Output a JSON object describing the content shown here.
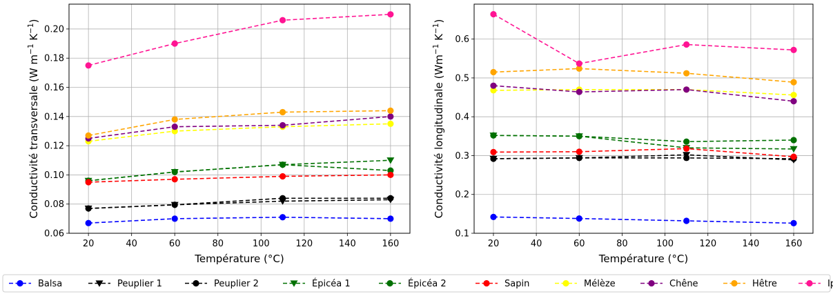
{
  "chart_data": [
    {
      "type": "line",
      "x": [
        20,
        60,
        110,
        160
      ],
      "xlabel": "Température (°C)",
      "ylabel": "Conductivité transversale (W m⁻¹ K⁻¹)",
      "xlim": [
        11,
        169
      ],
      "ylim": [
        0.06,
        0.217
      ],
      "xticks": [
        "20",
        "40",
        "60",
        "80",
        "100",
        "120",
        "140",
        "160"
      ],
      "yticks": [
        "0.06",
        "0.08",
        "0.10",
        "0.12",
        "0.14",
        "0.16",
        "0.18",
        "0.20"
      ],
      "grid": true,
      "series": [
        {
          "name": "Balsa",
          "color": "#0000ff",
          "marker": "circle",
          "values": [
            0.067,
            0.07,
            0.071,
            0.07
          ]
        },
        {
          "name": "Peuplier 1",
          "color": "#000000",
          "marker": "triangle-down",
          "values": [
            0.077,
            0.0795,
            0.082,
            0.083
          ]
        },
        {
          "name": "Peuplier 2",
          "color": "#000000",
          "marker": "circle",
          "values": [
            0.077,
            0.0795,
            0.084,
            0.084
          ]
        },
        {
          "name": "Épicéa 1",
          "color": "#007000",
          "marker": "triangle-down",
          "values": [
            0.096,
            0.102,
            0.107,
            0.11
          ]
        },
        {
          "name": "Épicéa 2",
          "color": "#007000",
          "marker": "circle",
          "values": [
            0.096,
            0.102,
            0.107,
            0.103
          ]
        },
        {
          "name": "Sapin",
          "color": "#ff0000",
          "marker": "circle",
          "values": [
            0.095,
            0.097,
            0.099,
            0.1
          ]
        },
        {
          "name": "Mélèze",
          "color": "#ffff00",
          "marker": "circle",
          "values": [
            0.123,
            0.13,
            0.133,
            0.135
          ]
        },
        {
          "name": "Chêne",
          "color": "#800080",
          "marker": "circle",
          "values": [
            0.125,
            0.133,
            0.134,
            0.14
          ]
        },
        {
          "name": "Hêtre",
          "color": "#ffa500",
          "marker": "circle",
          "values": [
            0.127,
            0.138,
            0.143,
            0.144
          ]
        },
        {
          "name": "Ipé",
          "color": "#ff1493",
          "marker": "circle",
          "values": [
            0.175,
            0.19,
            0.206,
            0.21
          ]
        }
      ]
    },
    {
      "type": "line",
      "x": [
        20,
        60,
        110,
        160
      ],
      "xlabel": "Température (°C)",
      "ylabel": "Conductivité longitudinale (Wm⁻¹ K⁻¹)",
      "xlim": [
        11,
        169
      ],
      "ylim": [
        0.1,
        0.69
      ],
      "xticks": [
        "20",
        "40",
        "60",
        "80",
        "100",
        "120",
        "140",
        "160"
      ],
      "yticks": [
        "0.1",
        "0.2",
        "0.3",
        "0.4",
        "0.5",
        "0.6"
      ],
      "grid": true,
      "series": [
        {
          "name": "Balsa",
          "color": "#0000ff",
          "marker": "circle",
          "values": [
            0.142,
            0.138,
            0.132,
            0.126
          ]
        },
        {
          "name": "Peuplier 1",
          "color": "#000000",
          "marker": "triangle-down",
          "values": [
            0.292,
            0.294,
            0.302,
            0.289
          ]
        },
        {
          "name": "Peuplier 2",
          "color": "#000000",
          "marker": "circle",
          "values": [
            0.292,
            0.294,
            0.294,
            0.292
          ]
        },
        {
          "name": "Épicéa 1",
          "color": "#007000",
          "marker": "triangle-down",
          "values": [
            0.352,
            0.35,
            0.32,
            0.317
          ]
        },
        {
          "name": "Épicéa 2",
          "color": "#007000",
          "marker": "circle",
          "values": [
            0.352,
            0.35,
            0.336,
            0.34
          ]
        },
        {
          "name": "Sapin",
          "color": "#ff0000",
          "marker": "circle",
          "values": [
            0.309,
            0.31,
            0.318,
            0.297
          ]
        },
        {
          "name": "Mélèze",
          "color": "#ffff00",
          "marker": "circle",
          "values": [
            0.468,
            0.47,
            0.47,
            0.456
          ]
        },
        {
          "name": "Chêne",
          "color": "#800080",
          "marker": "circle",
          "values": [
            0.48,
            0.464,
            0.47,
            0.44
          ]
        },
        {
          "name": "Hêtre",
          "color": "#ffa500",
          "marker": "circle",
          "values": [
            0.515,
            0.524,
            0.512,
            0.489
          ]
        },
        {
          "name": "Ipé",
          "color": "#ff1493",
          "marker": "circle",
          "values": [
            0.664,
            0.537,
            0.586,
            0.572
          ]
        }
      ]
    }
  ],
  "legend": {
    "placement": "bottom",
    "items": [
      {
        "name": "Balsa",
        "color": "#0000ff",
        "marker": "circle"
      },
      {
        "name": "Peuplier 1",
        "color": "#000000",
        "marker": "triangle-down"
      },
      {
        "name": "Peuplier 2",
        "color": "#000000",
        "marker": "circle"
      },
      {
        "name": "Épicéa 1",
        "color": "#007000",
        "marker": "triangle-down"
      },
      {
        "name": "Épicéa 2",
        "color": "#007000",
        "marker": "circle"
      },
      {
        "name": "Sapin",
        "color": "#ff0000",
        "marker": "circle"
      },
      {
        "name": "Mélèze",
        "color": "#ffff00",
        "marker": "circle"
      },
      {
        "name": "Chêne",
        "color": "#800080",
        "marker": "circle"
      },
      {
        "name": "Hêtre",
        "color": "#ffa500",
        "marker": "circle"
      },
      {
        "name": "Ipé",
        "color": "#ff1493",
        "marker": "circle"
      }
    ]
  }
}
